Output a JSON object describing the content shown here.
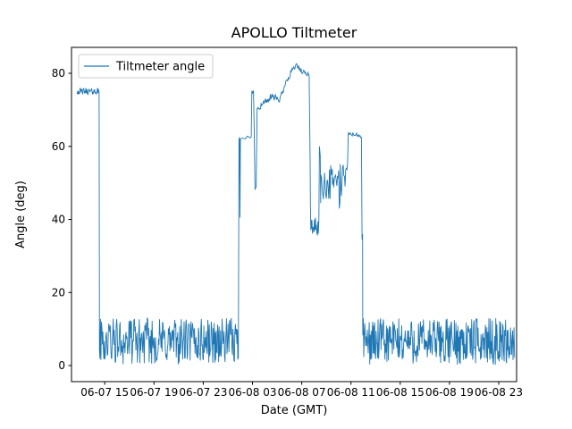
{
  "chart_data": {
    "type": "line",
    "title": "APOLLO Tiltmeter",
    "xlabel": "Date (GMT)",
    "ylabel": "Angle (deg)",
    "legend_label": "Tiltmeter angle",
    "legend_position": "upper left",
    "grid": false,
    "series_color": "#1f77b4",
    "axis_color": "#000000",
    "legend_border_color": "#cccccc",
    "x_unit": "hours since 06-07 00:00 GMT",
    "x_range_hours": [
      12.3,
      48.45
    ],
    "y_range": [
      -4.4,
      87.1
    ],
    "y_ticks": [
      0,
      20,
      40,
      60,
      80
    ],
    "x_ticks": [
      {
        "hour": 15,
        "label": "06-07 15"
      },
      {
        "hour": 19,
        "label": "06-07 19"
      },
      {
        "hour": 23,
        "label": "06-07 23"
      },
      {
        "hour": 27,
        "label": "06-08 03"
      },
      {
        "hour": 31,
        "label": "06-08 07"
      },
      {
        "hour": 35,
        "label": "06-08 11"
      },
      {
        "hour": 39,
        "label": "06-08 15"
      },
      {
        "hour": 43,
        "label": "06-08 19"
      },
      {
        "hour": 47,
        "label": "06-08 23"
      }
    ],
    "segments": [
      {
        "type": "noise",
        "t0": 12.74,
        "t1": 14.55,
        "min": 74.2,
        "max": 75.9,
        "step": 0.03
      },
      {
        "type": "noise",
        "t0": 14.57,
        "t1": 25.88,
        "min": 0.2,
        "max": 13.0,
        "step": 0.04
      },
      {
        "type": "path",
        "points": [
          [
            25.9,
            62.0
          ],
          [
            25.95,
            62.5
          ],
          [
            25.98,
            40.5
          ],
          [
            26.02,
            62.0
          ],
          [
            26.2,
            62.3
          ],
          [
            26.4,
            62.0
          ],
          [
            26.6,
            62.8
          ],
          [
            26.8,
            62.3
          ],
          [
            26.9,
            62.6
          ]
        ]
      },
      {
        "type": "path",
        "points": [
          [
            26.95,
            75.2
          ],
          [
            27.02,
            74.6
          ],
          [
            27.08,
            75.3
          ],
          [
            27.15,
            62.0
          ],
          [
            27.2,
            48.3
          ],
          [
            27.3,
            48.8
          ],
          [
            27.38,
            70.5
          ]
        ]
      },
      {
        "type": "ramp",
        "t0": 27.4,
        "t1": 28.3,
        "v0": 70.5,
        "v1": 73.0,
        "amp": 1.0,
        "step": 0.05
      },
      {
        "type": "ramp",
        "t0": 28.3,
        "t1": 29.1,
        "v0": 73.0,
        "v1": 73.5,
        "amp": 1.2,
        "step": 0.05
      },
      {
        "type": "ramp",
        "t0": 29.1,
        "t1": 29.6,
        "v0": 72.0,
        "v1": 76.0,
        "amp": 0.8,
        "step": 0.05
      },
      {
        "type": "ramp",
        "t0": 29.6,
        "t1": 30.1,
        "v0": 76.5,
        "v1": 80.0,
        "amp": 0.8,
        "step": 0.05
      },
      {
        "type": "ramp",
        "t0": 30.1,
        "t1": 30.6,
        "v0": 80.5,
        "v1": 82.5,
        "amp": 0.7,
        "step": 0.05
      },
      {
        "type": "ramp",
        "t0": 30.6,
        "t1": 31.1,
        "v0": 82.0,
        "v1": 80.0,
        "amp": 0.8,
        "step": 0.05
      },
      {
        "type": "ramp",
        "t0": 31.1,
        "t1": 31.65,
        "v0": 80.5,
        "v1": 79.5,
        "amp": 0.6,
        "step": 0.05
      },
      {
        "type": "path",
        "points": [
          [
            31.68,
            56.0
          ],
          [
            31.7,
            44.0
          ],
          [
            31.74,
            37.0
          ]
        ]
      },
      {
        "type": "noise",
        "t0": 31.75,
        "t1": 32.4,
        "min": 35.5,
        "max": 40.5,
        "step": 0.04
      },
      {
        "type": "path",
        "points": [
          [
            32.44,
            60.0
          ],
          [
            32.5,
            57.5
          ],
          [
            32.54,
            44.5
          ]
        ]
      },
      {
        "type": "noise",
        "t0": 32.55,
        "t1": 33.5,
        "min": 45.0,
        "max": 55.0,
        "step": 0.05
      },
      {
        "type": "noise",
        "t0": 33.5,
        "t1": 34.0,
        "min": 48.0,
        "max": 54.0,
        "step": 0.05
      },
      {
        "type": "path",
        "points": [
          [
            34.05,
            43.0
          ],
          [
            34.1,
            44.5
          ]
        ]
      },
      {
        "type": "noise",
        "t0": 34.12,
        "t1": 34.7,
        "min": 45.5,
        "max": 56.0,
        "step": 0.05
      },
      {
        "type": "path",
        "points": [
          [
            34.72,
            55.5
          ],
          [
            34.78,
            63.5
          ]
        ]
      },
      {
        "type": "ramp",
        "t0": 34.8,
        "t1": 35.88,
        "v0": 63.5,
        "v1": 62.8,
        "amp": 0.7,
        "step": 0.05
      },
      {
        "type": "path",
        "points": [
          [
            35.9,
            34.5
          ],
          [
            35.94,
            36.0
          ]
        ]
      },
      {
        "type": "noise",
        "t0": 35.96,
        "t1": 48.3,
        "min": 0.2,
        "max": 13.0,
        "step": 0.04
      }
    ]
  }
}
